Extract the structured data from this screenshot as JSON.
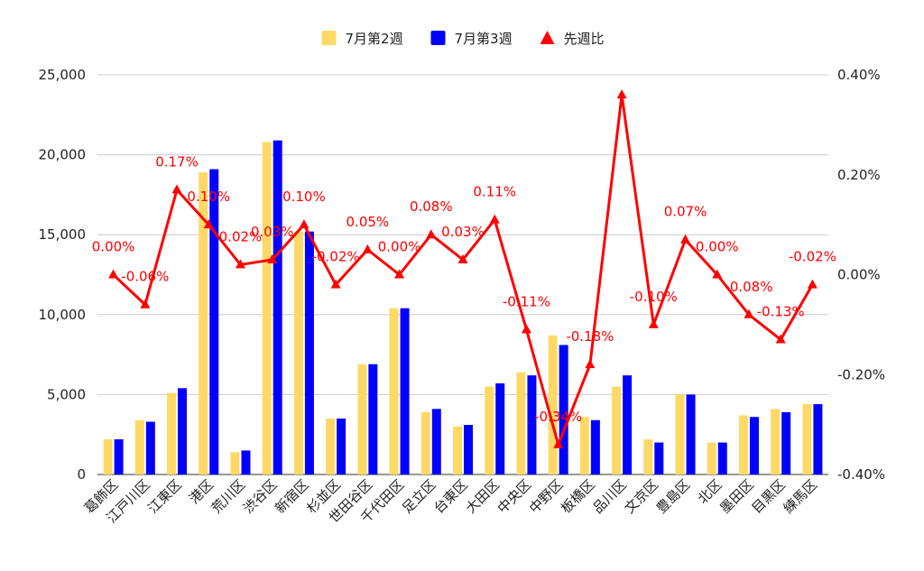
{
  "chart_data": {
    "type": "bar",
    "categories": [
      "葛飾区",
      "江戸川区",
      "江東区",
      "港区",
      "荒川区",
      "渋谷区",
      "新宿区",
      "杉並区",
      "世田谷区",
      "千代田区",
      "足立区",
      "台東区",
      "大田区",
      "中央区",
      "中野区",
      "板橋区",
      "品川区",
      "文京区",
      "豊島区",
      "北区",
      "墨田区",
      "目黒区",
      "練馬区"
    ],
    "series": [
      {
        "name": "7月第2週",
        "kind": "bar",
        "axis": "left",
        "color": "#ffd966",
        "values": [
          2200,
          3400,
          5100,
          18900,
          1400,
          20800,
          15200,
          3500,
          6900,
          10400,
          3900,
          3000,
          5500,
          6400,
          8700,
          3600,
          5500,
          2200,
          5000,
          2000,
          3700,
          4100,
          4400
        ]
      },
      {
        "name": "7月第3週",
        "kind": "bar",
        "axis": "left",
        "color": "#0000ff",
        "values": [
          2200,
          3300,
          5400,
          19100,
          1500,
          20900,
          15200,
          3500,
          6900,
          10400,
          4100,
          3100,
          5700,
          6200,
          8100,
          3400,
          6200,
          2000,
          5000,
          2000,
          3600,
          3900,
          4400
        ]
      },
      {
        "name": "先週比",
        "kind": "line",
        "axis": "right",
        "color": "#ff0000",
        "values": [
          0.0,
          -0.06,
          0.17,
          0.1,
          0.02,
          0.03,
          0.1,
          -0.02,
          0.05,
          0.0,
          0.08,
          0.03,
          0.11,
          -0.11,
          -0.34,
          -0.18,
          0.36,
          -0.1,
          0.07,
          0.0,
          -0.08,
          -0.13,
          -0.02
        ],
        "labels": [
          "0.00%",
          "-0.06%",
          "0.17%",
          "0.10%",
          "0.02%",
          "0.03%",
          "0.10%",
          "-0.02%",
          "0.05%",
          "0.00%",
          "0.08%",
          "0.03%",
          "0.11%",
          "-0.11%",
          "-0.34%",
          "-0.18%",
          "",
          "-0.10%",
          "0.07%",
          "0.00%",
          "-0.08%",
          "-0.13%",
          "-0.02%"
        ]
      }
    ],
    "y_left": {
      "min": 0,
      "max": 25000,
      "ticks": [
        "0",
        "5,000",
        "10,000",
        "15,000",
        "20,000",
        "25,000"
      ]
    },
    "y_right": {
      "min": -0.4,
      "max": 0.4,
      "ticks": [
        "-0.40%",
        "-0.20%",
        "0.00%",
        "0.20%",
        "0.40%"
      ]
    },
    "legend": {
      "position": "top",
      "items": [
        "7月第2週",
        "7月第3週",
        "先週比"
      ]
    },
    "grid": true
  }
}
